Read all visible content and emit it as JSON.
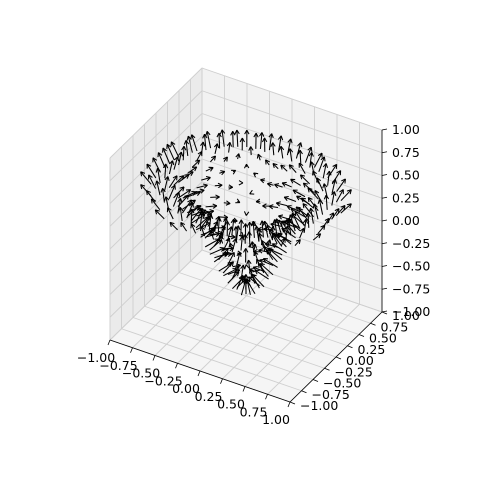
{
  "chart_data": {
    "type": "quiver3d",
    "title": "",
    "xlabel": "",
    "ylabel": "",
    "zlabel": "",
    "xlim": [
      -1.0,
      1.0
    ],
    "ylim": [
      -1.0,
      1.0
    ],
    "zlim": [
      -1.0,
      1.0
    ],
    "grid": true,
    "x_ticks": [
      -1.0,
      -0.75,
      -0.5,
      -0.25,
      0.0,
      0.25,
      0.5,
      0.75,
      1.0
    ],
    "y_ticks": [
      -1.0,
      -0.75,
      -0.5,
      -0.25,
      0.0,
      0.25,
      0.5,
      0.75,
      1.0
    ],
    "z_ticks": [
      -1.0,
      -0.75,
      -0.5,
      -0.25,
      0.0,
      0.25,
      0.5,
      0.75,
      1.0
    ],
    "x_tick_labels": [
      "−1.00",
      "−0.75",
      "−0.50",
      "−0.25",
      "0.00",
      "0.25",
      "0.50",
      "0.75",
      "1.00"
    ],
    "y_tick_labels": [
      "−1.00",
      "−0.75",
      "−0.50",
      "−0.25",
      "0.00",
      "0.25",
      "0.50",
      "0.75",
      "1.00"
    ],
    "z_tick_labels": [
      "−1.00",
      "−0.75",
      "−0.50",
      "−0.25",
      "0.00",
      "0.25",
      "0.50",
      "0.75",
      "1.00"
    ],
    "field": {
      "surface": "z = -cos(4*pi*r) clipped to r <= 0.8 radial bowl",
      "grid_step": 0.1,
      "arrow_length": 0.1,
      "arrow_color": "#000000"
    },
    "colors": {
      "pane": "#f2f2f2",
      "grid": "#cfcfcf",
      "arrows": "#000000"
    }
  }
}
